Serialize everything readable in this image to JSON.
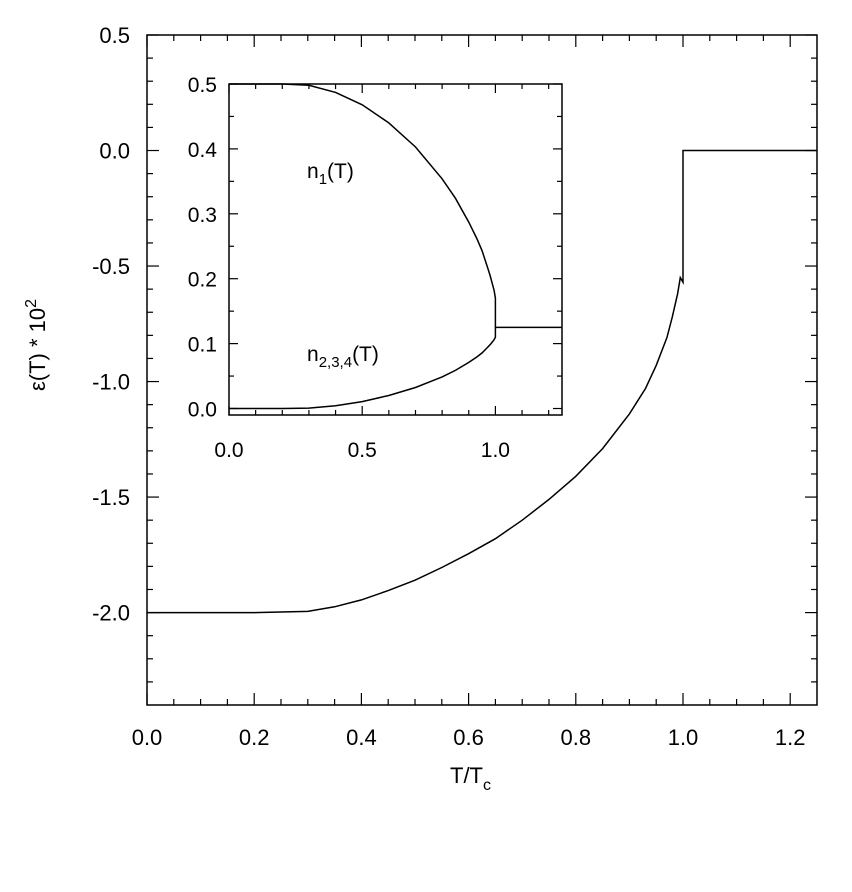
{
  "chart_data": [
    {
      "type": "line",
      "xlabel_main": "T/T",
      "xlabel_sub": "c",
      "ylabel_main": "ε(T) * 10",
      "ylabel_sup": "2",
      "xlim": [
        0.0,
        1.25
      ],
      "ylim": [
        -2.4,
        0.5
      ],
      "x_ticks": [
        0.0,
        0.2,
        0.4,
        0.6,
        0.8,
        1.0,
        1.2
      ],
      "x_tick_labels": [
        "0.0",
        "0.2",
        "0.4",
        "0.6",
        "0.8",
        "1.0",
        "1.2"
      ],
      "y_ticks": [
        0.5,
        0.0,
        -0.5,
        -1.0,
        -1.5,
        -2.0
      ],
      "y_tick_labels": [
        "0.5",
        "0.0",
        "-0.5",
        "-1.0",
        "-1.5",
        "-2.0"
      ],
      "series": [
        {
          "x": [
            0.0,
            0.1,
            0.2,
            0.3,
            0.35,
            0.4,
            0.45,
            0.5,
            0.55,
            0.6,
            0.65,
            0.7,
            0.75,
            0.8,
            0.85,
            0.9,
            0.93,
            0.95,
            0.97,
            0.98,
            0.99,
            0.995,
            1.0,
            1.0,
            1.25
          ],
          "y": [
            -2.0,
            -2.0,
            -2.0,
            -1.995,
            -1.975,
            -1.945,
            -1.905,
            -1.86,
            -1.805,
            -1.745,
            -1.68,
            -1.6,
            -1.51,
            -1.41,
            -1.29,
            -1.14,
            -1.03,
            -0.93,
            -0.81,
            -0.72,
            -0.62,
            -0.55,
            -0.57,
            0.0,
            0.0
          ]
        }
      ]
    },
    {
      "type": "line",
      "xlim": [
        0.0,
        1.25
      ],
      "ylim": [
        -0.01,
        0.5
      ],
      "x_ticks": [
        0.0,
        0.5,
        1.0
      ],
      "x_tick_labels": [
        "0.0",
        "0.5",
        "1.0"
      ],
      "y_ticks": [
        0.0,
        0.1,
        0.2,
        0.3,
        0.4,
        0.5
      ],
      "y_tick_labels": [
        "0.0",
        "0.1",
        "0.2",
        "0.3",
        "0.4",
        "0.5"
      ],
      "annotations": [
        {
          "text": "n",
          "sub": "1",
          "tail": "(T)",
          "x": 0.33,
          "y": 0.36
        },
        {
          "text": "n",
          "sub": "2,3,4",
          "tail": "(T)",
          "x": 0.33,
          "y": 0.075
        }
      ],
      "series": [
        {
          "x": [
            0.0,
            0.1,
            0.2,
            0.3,
            0.4,
            0.5,
            0.6,
            0.7,
            0.8,
            0.85,
            0.9,
            0.93,
            0.95,
            0.97,
            0.98,
            0.99,
            0.995,
            1.0,
            1.0,
            1.25
          ],
          "y": [
            0.5,
            0.5,
            0.5,
            0.498,
            0.487,
            0.468,
            0.44,
            0.403,
            0.354,
            0.324,
            0.287,
            0.262,
            0.243,
            0.218,
            0.205,
            0.19,
            0.182,
            0.17,
            0.125,
            0.125
          ]
        },
        {
          "x": [
            0.0,
            0.1,
            0.2,
            0.3,
            0.4,
            0.5,
            0.6,
            0.7,
            0.8,
            0.85,
            0.9,
            0.93,
            0.95,
            0.97,
            0.98,
            0.99,
            0.995,
            1.0,
            1.0
          ],
          "y": [
            0.0,
            0.0,
            0.0,
            0.0007,
            0.0043,
            0.0107,
            0.02,
            0.0323,
            0.0487,
            0.0587,
            0.071,
            0.0793,
            0.0857,
            0.094,
            0.0983,
            0.1033,
            0.106,
            0.11,
            0.125
          ]
        }
      ]
    }
  ]
}
